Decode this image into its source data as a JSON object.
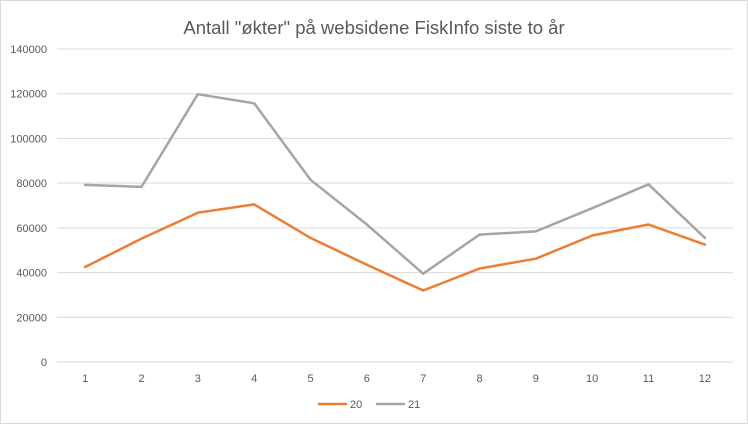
{
  "chart_data": {
    "type": "line",
    "title": "Antall \"økter\"  på websidene FiskInfo siste to år",
    "xlabel": "",
    "ylabel": "",
    "categories": [
      "1",
      "2",
      "3",
      "4",
      "5",
      "6",
      "7",
      "8",
      "9",
      "10",
      "11",
      "12"
    ],
    "ylim": [
      0,
      140000
    ],
    "yticks": [
      0,
      20000,
      40000,
      60000,
      80000,
      100000,
      120000,
      140000
    ],
    "grid": true,
    "legend_position": "bottom",
    "series": [
      {
        "name": "20",
        "color": "#ed7d31",
        "values": [
          42500,
          55200,
          66800,
          70500,
          55500,
          43500,
          32000,
          41800,
          46200,
          56600,
          61500,
          52500
        ]
      },
      {
        "name": "21",
        "color": "#a5a5a5",
        "values": [
          79200,
          78300,
          119800,
          115700,
          81500,
          61500,
          39500,
          57000,
          58400,
          68800,
          79500,
          55500
        ]
      }
    ]
  }
}
